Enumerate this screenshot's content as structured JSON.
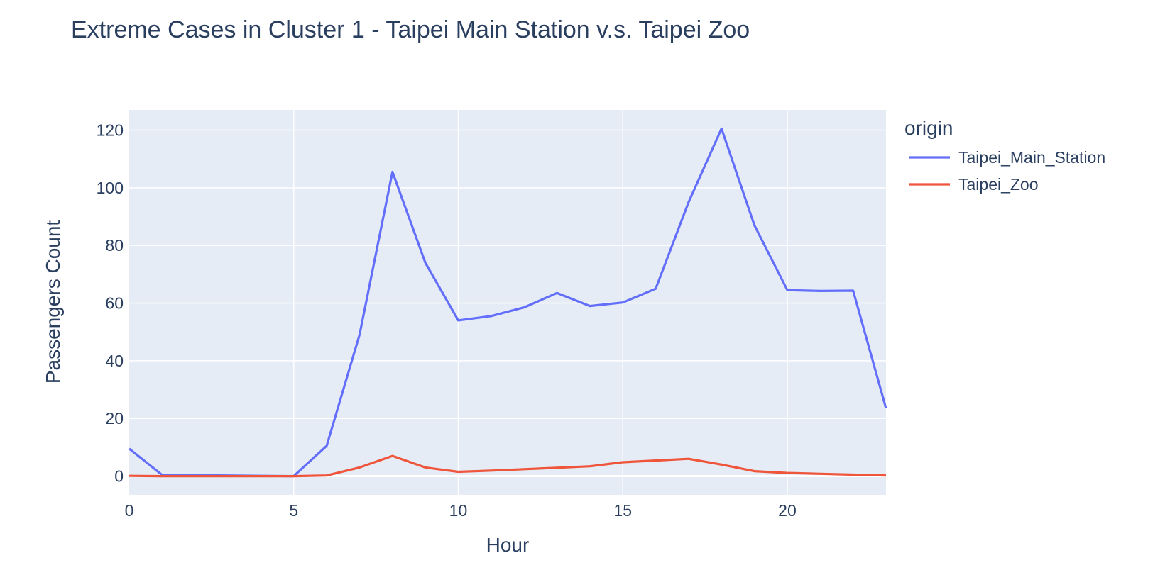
{
  "chart_data": {
    "type": "line",
    "title": "Extreme Cases in Cluster 1 - Taipei Main Station v.s.  Taipei Zoo",
    "xlabel": "Hour",
    "ylabel": "Passengers Count",
    "xlim": [
      0,
      23
    ],
    "ylim": [
      -6.5,
      127
    ],
    "x_ticks": [
      0,
      5,
      10,
      15,
      20
    ],
    "y_ticks": [
      0,
      20,
      40,
      60,
      80,
      100,
      120
    ],
    "grid": true,
    "legend": {
      "title": "origin",
      "position": "right"
    },
    "x": [
      0,
      1,
      2,
      3,
      4,
      5,
      6,
      7,
      8,
      9,
      10,
      11,
      12,
      13,
      14,
      15,
      16,
      17,
      18,
      19,
      20,
      21,
      22,
      23
    ],
    "series": [
      {
        "name": "Taipei_Main_Station",
        "color": "#636efa",
        "values": [
          9.5,
          0.4,
          0.3,
          0.2,
          0.1,
          0.0,
          10.5,
          49,
          105.5,
          74,
          54,
          55.5,
          58.5,
          63.5,
          59,
          60.2,
          65,
          95,
          120.5,
          87,
          64.5,
          64.2,
          64.3,
          23.5
        ]
      },
      {
        "name": "Taipei_Zoo",
        "color": "#ef553b",
        "values": [
          0.1,
          0.0,
          0.0,
          0.0,
          0.0,
          0.0,
          0.2,
          3,
          7,
          3,
          1.5,
          1.9,
          2.4,
          2.9,
          3.4,
          4.8,
          5.4,
          6,
          4,
          1.7,
          1.1,
          0.8,
          0.5,
          0.2
        ]
      }
    ],
    "colors": {
      "plot_bg": "#e5ecf6",
      "grid": "#ffffff",
      "text": "#2a3f5f"
    }
  }
}
